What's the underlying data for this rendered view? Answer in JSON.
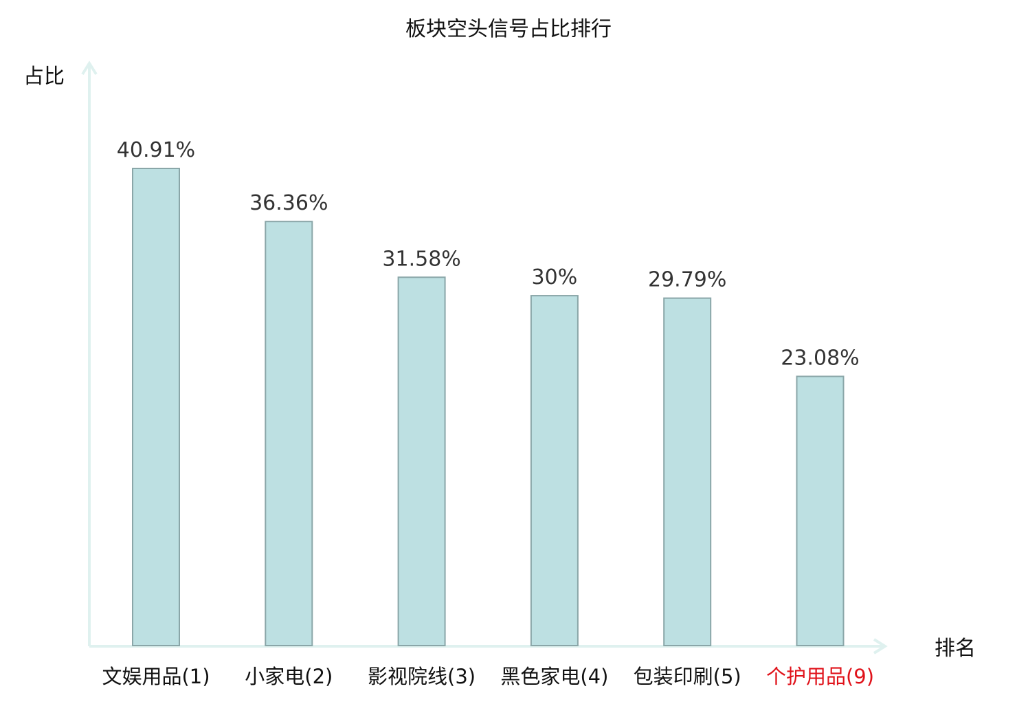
{
  "chart_data": {
    "type": "bar",
    "title": "板块空头信号占比排行",
    "ylabel": "占比",
    "xlabel": "排名",
    "ylim": [
      0,
      50
    ],
    "grid": false,
    "legend": "none",
    "categories": [
      "文娱用品(1)",
      "小家电(2)",
      "影视院线(3)",
      "黑色家电(4)",
      "包装印刷(5)",
      "个护用品(9)"
    ],
    "values": [
      40.91,
      36.36,
      31.58,
      30,
      29.79,
      23.08
    ],
    "value_labels": [
      "40.91%",
      "36.36%",
      "31.58%",
      "30%",
      "29.79%",
      "23.08%"
    ],
    "highlighted_category_index": 5,
    "colors": {
      "bar_fill": "#bde0e2",
      "bar_stroke": "#8aa6a8",
      "axis": "#dff1ef",
      "text": "#111111",
      "value_label": "#333333",
      "highlight": "#e0121a"
    }
  }
}
